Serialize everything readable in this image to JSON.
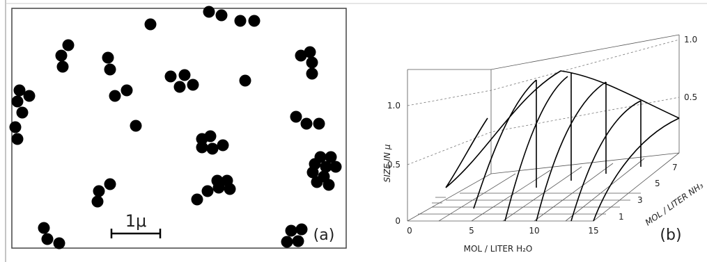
{
  "panel_a": {
    "scale_label": "1μ",
    "tag": "(a)"
  },
  "panel_b": {
    "tag": "(b)",
    "z_axis": {
      "title": "SIZE IN μ",
      "ticks": [
        "0",
        "0.5",
        "1.0"
      ],
      "back_ticks": [
        "0.5",
        "1.0"
      ]
    },
    "x_axis": {
      "title": "MOL / LITER H₂O",
      "ticks": [
        "0",
        "5",
        "10",
        "15"
      ]
    },
    "y_axis": {
      "title": "MOL / LITER NH₃",
      "ticks": [
        "1",
        "3",
        "5",
        "7"
      ]
    }
  }
}
